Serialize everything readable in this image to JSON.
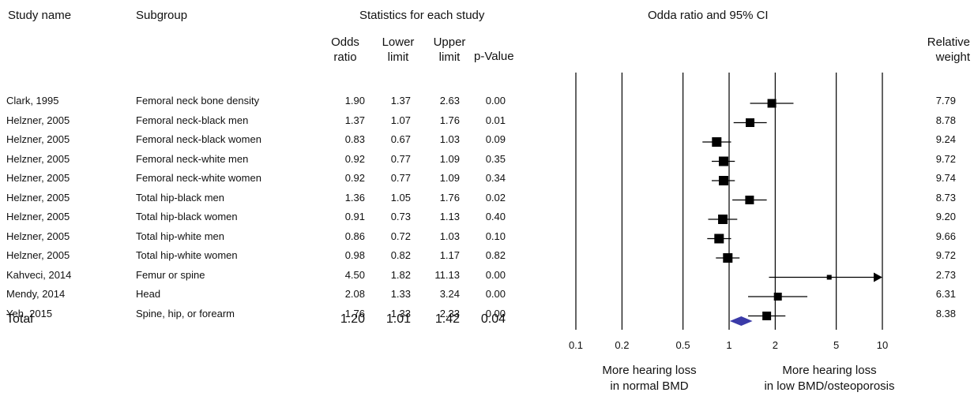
{
  "headers": {
    "study_name": "Study name",
    "subgroup": "Subgroup",
    "statistics": "Statistics for each study",
    "plot_title": "Odda ratio and 95% CI",
    "odds_ratio": [
      "Odds",
      "ratio"
    ],
    "lower_limit": [
      "Lower",
      "limit"
    ],
    "upper_limit": [
      "Upper",
      "limit"
    ],
    "p_value": "p-Value",
    "relative_weight": [
      "Relative",
      "weight"
    ]
  },
  "favours": {
    "left": [
      "More hearing loss",
      "in normal BMD"
    ],
    "right": [
      "More hearing loss",
      "in low BMD/osteoporosis"
    ]
  },
  "chart_data": {
    "type": "forest",
    "x_scale": "log",
    "xlim": [
      0.1,
      10
    ],
    "x_ticks": [
      "0.1",
      "0.2",
      "0.5",
      "1",
      "2",
      "5",
      "10"
    ],
    "x_tick_values": [
      0.1,
      0.2,
      0.5,
      1,
      2,
      5,
      10
    ],
    "reference_line": 1,
    "grid": true,
    "marker_color": "#000000",
    "summary_color": "#3a3aa8",
    "studies": [
      {
        "study": "Clark, 1995",
        "subgroup": "Femoral neck bone density",
        "or": 1.9,
        "lower": 1.37,
        "upper": 2.63,
        "p": "0.00",
        "or_text": "1.90",
        "lower_text": "1.37",
        "upper_text": "2.63",
        "weight": "7.79",
        "w": 7.79
      },
      {
        "study": "Helzner, 2005",
        "subgroup": "Femoral neck-black men",
        "or": 1.37,
        "lower": 1.07,
        "upper": 1.76,
        "p": "0.01",
        "or_text": "1.37",
        "lower_text": "1.07",
        "upper_text": "1.76",
        "weight": "8.78",
        "w": 8.78
      },
      {
        "study": "Helzner, 2005",
        "subgroup": "Femoral neck-black women",
        "or": 0.83,
        "lower": 0.67,
        "upper": 1.03,
        "p": "0.09",
        "or_text": "0.83",
        "lower_text": "0.67",
        "upper_text": "1.03",
        "weight": "9.24",
        "w": 9.24
      },
      {
        "study": "Helzner, 2005",
        "subgroup": "Femoral neck-white men",
        "or": 0.92,
        "lower": 0.77,
        "upper": 1.09,
        "p": "0.35",
        "or_text": "0.92",
        "lower_text": "0.77",
        "upper_text": "1.09",
        "weight": "9.72",
        "w": 9.72
      },
      {
        "study": "Helzner, 2005",
        "subgroup": "Femoral neck-white women",
        "or": 0.92,
        "lower": 0.77,
        "upper": 1.09,
        "p": "0.34",
        "or_text": "0.92",
        "lower_text": "0.77",
        "upper_text": "1.09",
        "weight": "9.74",
        "w": 9.74
      },
      {
        "study": "Helzner, 2005",
        "subgroup": "Total hip-black men",
        "or": 1.36,
        "lower": 1.05,
        "upper": 1.76,
        "p": "0.02",
        "or_text": "1.36",
        "lower_text": "1.05",
        "upper_text": "1.76",
        "weight": "8.73",
        "w": 8.73
      },
      {
        "study": "Helzner, 2005",
        "subgroup": "Total hip-black women",
        "or": 0.91,
        "lower": 0.73,
        "upper": 1.13,
        "p": "0.40",
        "or_text": "0.91",
        "lower_text": "0.73",
        "upper_text": "1.13",
        "weight": "9.20",
        "w": 9.2
      },
      {
        "study": "Helzner, 2005",
        "subgroup": "Total hip-white men",
        "or": 0.86,
        "lower": 0.72,
        "upper": 1.03,
        "p": "0.10",
        "or_text": "0.86",
        "lower_text": "0.72",
        "upper_text": "1.03",
        "weight": "9.66",
        "w": 9.66
      },
      {
        "study": "Helzner, 2005",
        "subgroup": "Total hip-white women",
        "or": 0.98,
        "lower": 0.82,
        "upper": 1.17,
        "p": "0.82",
        "or_text": "0.98",
        "lower_text": "0.82",
        "upper_text": "1.17",
        "weight": "9.72",
        "w": 9.72
      },
      {
        "study": "Kahveci, 2014",
        "subgroup": "Femur or spine",
        "or": 4.5,
        "lower": 1.82,
        "upper": 11.13,
        "p": "0.00",
        "or_text": "4.50",
        "lower_text": "1.82",
        "upper_text": "11.13",
        "weight": "2.73",
        "w": 2.73
      },
      {
        "study": "Mendy, 2014",
        "subgroup": "Head",
        "or": 2.08,
        "lower": 1.33,
        "upper": 3.24,
        "p": "0.00",
        "or_text": "2.08",
        "lower_text": "1.33",
        "upper_text": "3.24",
        "weight": "6.31",
        "w": 6.31
      },
      {
        "study": "Yeh, 2015",
        "subgroup": "Spine, hip, or forearm",
        "or": 1.76,
        "lower": 1.33,
        "upper": 2.33,
        "p": "0.00",
        "or_text": "1.76",
        "lower_text": "1.33",
        "upper_text": "2.33",
        "weight": "8.38",
        "w": 8.38
      }
    ],
    "total": {
      "label": "Total",
      "or": 1.2,
      "lower": 1.01,
      "upper": 1.42,
      "p": "0.04",
      "or_text": "1.20",
      "lower_text": "1.01",
      "upper_text": "1.42"
    }
  }
}
